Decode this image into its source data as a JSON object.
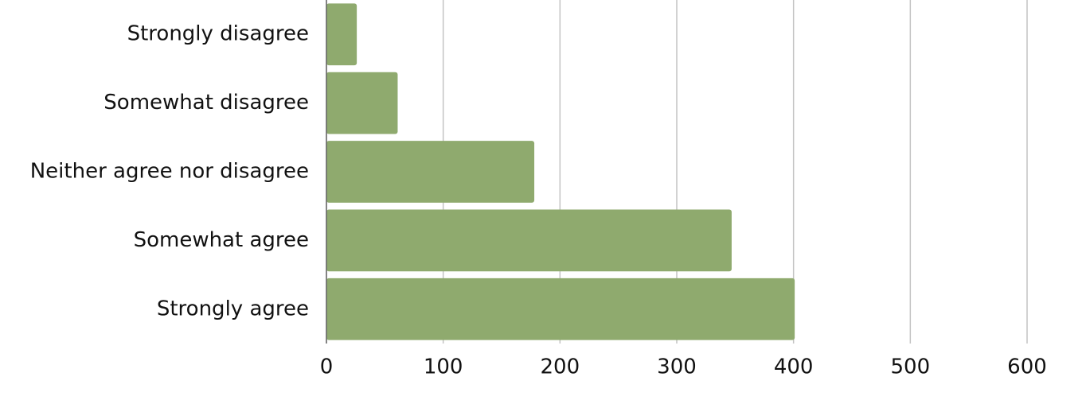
{
  "chart_data": {
    "type": "hbar",
    "categories": [
      "Strongly disagree",
      "Somewhat disagree",
      "Neither agree nor disagree",
      "Somewhat agree",
      "Strongly agree"
    ],
    "values": [
      26,
      61,
      178,
      347,
      401
    ],
    "color": "#8faa6e",
    "xlim": [
      0,
      600
    ],
    "xticks": [
      0,
      100,
      200,
      300,
      400,
      500,
      600
    ],
    "grid": true
  }
}
